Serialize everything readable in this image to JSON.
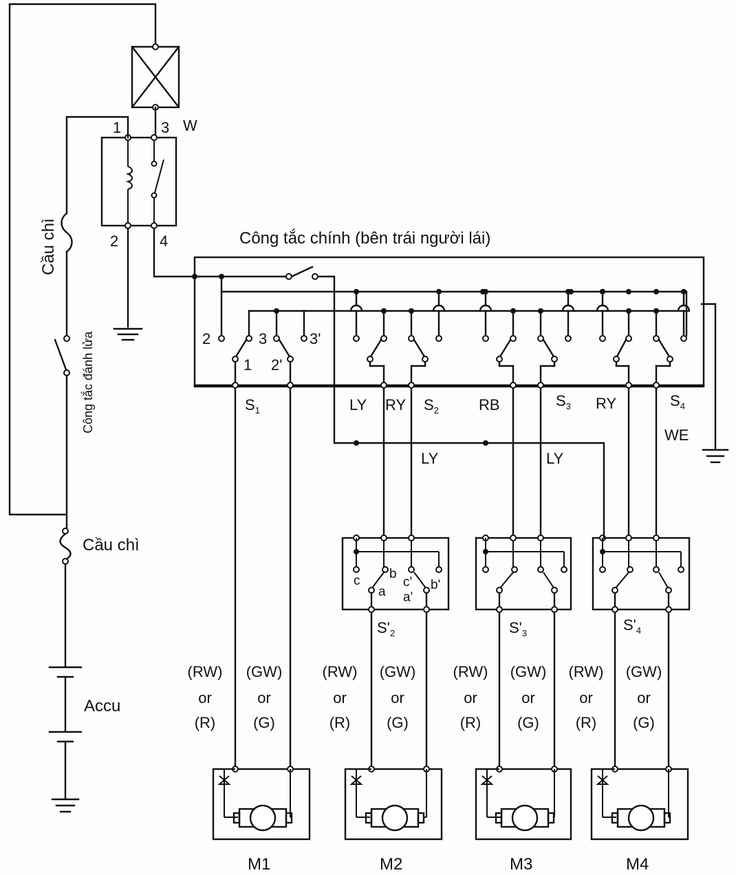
{
  "diagram": {
    "main_switch_title": "Công tắc chính (bên trái người lái)",
    "relay": {
      "pin1": "1",
      "pin2": "2",
      "pin3": "3",
      "pin4": "4",
      "label": "W"
    },
    "fuse_top": "Cầu chì",
    "ignition_switch": "Công tắc đánh lửa",
    "fuse_bottom": "Cầu chì",
    "battery": "Accu",
    "s1_terminals": {
      "t1": "1",
      "t2": "2",
      "t2p": "2'",
      "t3": "3",
      "t3p": "3'"
    },
    "switch_labels": {
      "s1": "S",
      "s1_sub": "1",
      "s2": "S",
      "s2_sub": "2",
      "s3": "S",
      "s3_sub": "3",
      "s4": "S",
      "s4_sub": "4"
    },
    "wire_colors": {
      "ly1": "LY",
      "ry1": "RY",
      "rb": "RB",
      "ry2": "RY",
      "we": "WE",
      "ly2": "LY",
      "ly3": "LY"
    },
    "sub_switches": {
      "s2": "S'",
      "s2_sub": "2",
      "s3": "S'",
      "s3_sub": "3",
      "s4": "S'",
      "s4_sub": "4"
    },
    "sub_terminals": {
      "c": "c",
      "b": "b",
      "cp": "c'",
      "bp": "b'",
      "a": "a",
      "ap": "a'"
    },
    "motor_wires": {
      "left_main": "(RW)",
      "right_main": "(GW)",
      "or": "or",
      "left_alt": "(R)",
      "right_alt": "(G)"
    },
    "motors": [
      "M1",
      "M2",
      "M3",
      "M4"
    ]
  }
}
